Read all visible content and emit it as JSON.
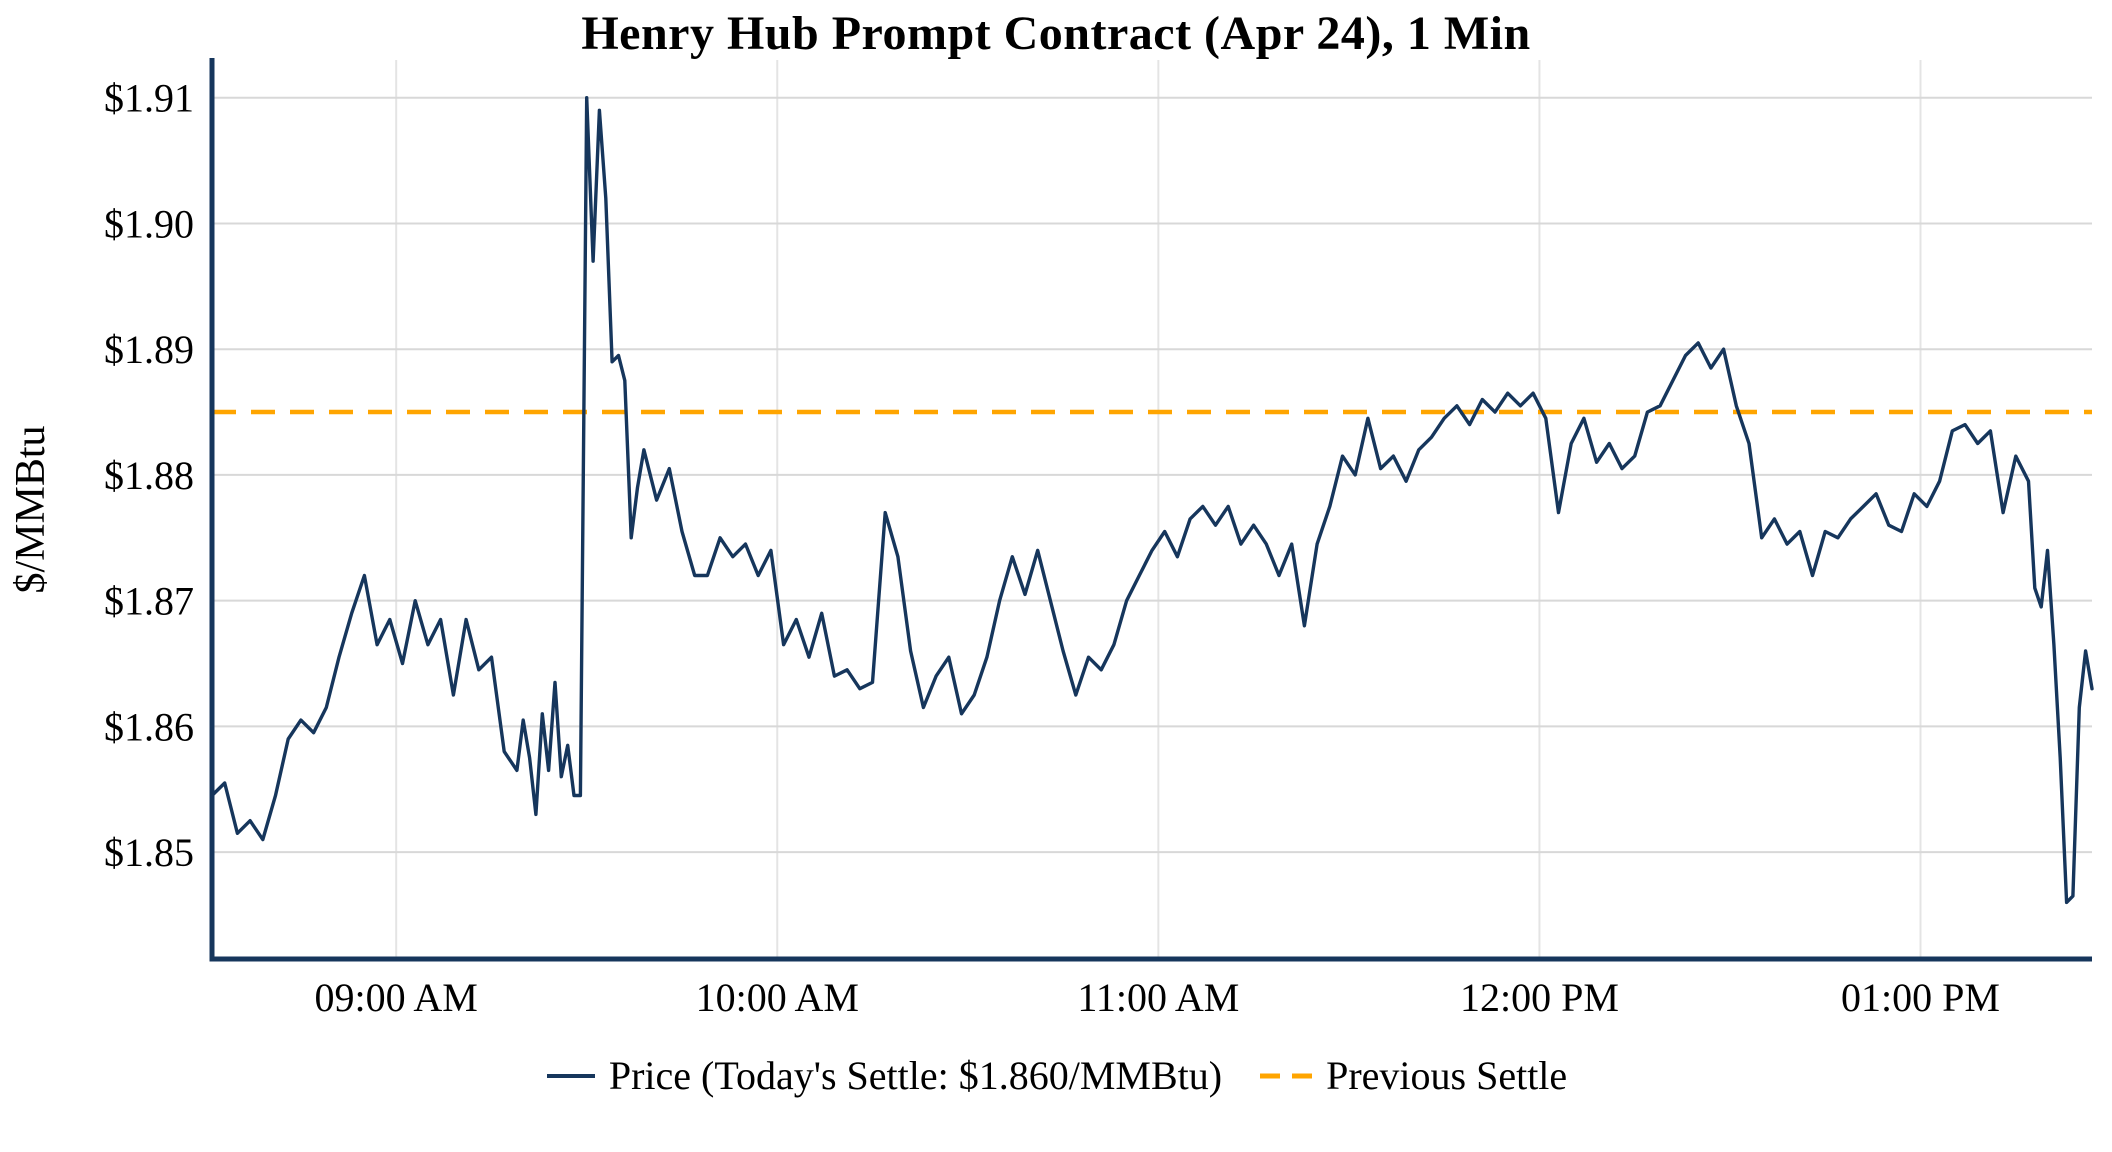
{
  "colors": {
    "price": "#16365c",
    "settle": "#FFA500",
    "axis": "#16365c",
    "grid_h": "#d8d8d8",
    "grid_v": "#e4e4e4",
    "text": "#000000",
    "background": "#ffffff"
  },
  "legend": {
    "price_label": "Price (Today's Settle: $1.860/MMBtu)",
    "settle_label": "Previous Settle"
  },
  "chart_data": {
    "type": "line",
    "title": "Henry Hub Prompt Contract (Apr 24), 1 Min",
    "xlabel": "",
    "ylabel": "$/MMBtu",
    "x_unit": "minutes_since_midnight",
    "xlim": [
      511,
      807
    ],
    "ylim": [
      1.8415,
      1.913
    ],
    "grid": true,
    "legend_position": "bottom",
    "previous_settle": 1.885,
    "todays_settle": 1.86,
    "y_ticks": [
      {
        "v": 1.85,
        "label": "$1.85"
      },
      {
        "v": 1.86,
        "label": "$1.86"
      },
      {
        "v": 1.87,
        "label": "$1.87"
      },
      {
        "v": 1.88,
        "label": "$1.88"
      },
      {
        "v": 1.89,
        "label": "$1.89"
      },
      {
        "v": 1.9,
        "label": "$1.90"
      },
      {
        "v": 1.91,
        "label": "$1.91"
      }
    ],
    "x_ticks": [
      {
        "t": 540,
        "label": "09:00 AM"
      },
      {
        "t": 600,
        "label": "10:00 AM"
      },
      {
        "t": 660,
        "label": "11:00 AM"
      },
      {
        "t": 720,
        "label": "12:00 PM"
      },
      {
        "t": 780,
        "label": "01:00 PM"
      }
    ],
    "series": [
      {
        "name": "Price (Today's Settle: $1.860/MMBtu)",
        "color": "#16365c",
        "style": "solid",
        "points": [
          [
            511,
            1.8545
          ],
          [
            513,
            1.8555
          ],
          [
            515,
            1.8515
          ],
          [
            517,
            1.8525
          ],
          [
            519,
            1.851
          ],
          [
            521,
            1.8545
          ],
          [
            523,
            1.859
          ],
          [
            525,
            1.8605
          ],
          [
            527,
            1.8595
          ],
          [
            529,
            1.8615
          ],
          [
            531,
            1.8655
          ],
          [
            533,
            1.869
          ],
          [
            535,
            1.872
          ],
          [
            537,
            1.8665
          ],
          [
            539,
            1.8685
          ],
          [
            541,
            1.865
          ],
          [
            543,
            1.87
          ],
          [
            545,
            1.8665
          ],
          [
            547,
            1.8685
          ],
          [
            549,
            1.8625
          ],
          [
            551,
            1.8685
          ],
          [
            553,
            1.8645
          ],
          [
            555,
            1.8655
          ],
          [
            557,
            1.858
          ],
          [
            559,
            1.8565
          ],
          [
            560,
            1.8605
          ],
          [
            561,
            1.8575
          ],
          [
            562,
            1.853
          ],
          [
            563,
            1.861
          ],
          [
            564,
            1.8565
          ],
          [
            565,
            1.8635
          ],
          [
            566,
            1.856
          ],
          [
            567,
            1.8585
          ],
          [
            568,
            1.8545
          ],
          [
            569,
            1.8545
          ],
          [
            570,
            1.91
          ],
          [
            571,
            1.897
          ],
          [
            572,
            1.909
          ],
          [
            573,
            1.902
          ],
          [
            574,
            1.889
          ],
          [
            575,
            1.8895
          ],
          [
            576,
            1.8875
          ],
          [
            577,
            1.875
          ],
          [
            578,
            1.879
          ],
          [
            579,
            1.882
          ],
          [
            581,
            1.878
          ],
          [
            583,
            1.8805
          ],
          [
            585,
            1.8755
          ],
          [
            587,
            1.872
          ],
          [
            589,
            1.872
          ],
          [
            591,
            1.875
          ],
          [
            593,
            1.8735
          ],
          [
            595,
            1.8745
          ],
          [
            597,
            1.872
          ],
          [
            599,
            1.874
          ],
          [
            601,
            1.8665
          ],
          [
            603,
            1.8685
          ],
          [
            605,
            1.8655
          ],
          [
            607,
            1.869
          ],
          [
            609,
            1.864
          ],
          [
            611,
            1.8645
          ],
          [
            613,
            1.863
          ],
          [
            615,
            1.8635
          ],
          [
            617,
            1.877
          ],
          [
            619,
            1.8735
          ],
          [
            621,
            1.866
          ],
          [
            623,
            1.8615
          ],
          [
            625,
            1.864
          ],
          [
            627,
            1.8655
          ],
          [
            629,
            1.861
          ],
          [
            631,
            1.8625
          ],
          [
            633,
            1.8655
          ],
          [
            635,
            1.87
          ],
          [
            637,
            1.8735
          ],
          [
            639,
            1.8705
          ],
          [
            641,
            1.874
          ],
          [
            643,
            1.87
          ],
          [
            645,
            1.866
          ],
          [
            647,
            1.8625
          ],
          [
            649,
            1.8655
          ],
          [
            651,
            1.8645
          ],
          [
            653,
            1.8665
          ],
          [
            655,
            1.87
          ],
          [
            657,
            1.872
          ],
          [
            659,
            1.874
          ],
          [
            661,
            1.8755
          ],
          [
            663,
            1.8735
          ],
          [
            665,
            1.8765
          ],
          [
            667,
            1.8775
          ],
          [
            669,
            1.876
          ],
          [
            671,
            1.8775
          ],
          [
            673,
            1.8745
          ],
          [
            675,
            1.876
          ],
          [
            677,
            1.8745
          ],
          [
            679,
            1.872
          ],
          [
            681,
            1.8745
          ],
          [
            683,
            1.868
          ],
          [
            685,
            1.8745
          ],
          [
            687,
            1.8775
          ],
          [
            689,
            1.8815
          ],
          [
            691,
            1.88
          ],
          [
            693,
            1.8845
          ],
          [
            695,
            1.8805
          ],
          [
            697,
            1.8815
          ],
          [
            699,
            1.8795
          ],
          [
            701,
            1.882
          ],
          [
            703,
            1.883
          ],
          [
            705,
            1.8845
          ],
          [
            707,
            1.8855
          ],
          [
            709,
            1.884
          ],
          [
            711,
            1.886
          ],
          [
            713,
            1.885
          ],
          [
            715,
            1.8865
          ],
          [
            717,
            1.8855
          ],
          [
            719,
            1.8865
          ],
          [
            721,
            1.8845
          ],
          [
            723,
            1.877
          ],
          [
            725,
            1.8825
          ],
          [
            727,
            1.8845
          ],
          [
            729,
            1.881
          ],
          [
            731,
            1.8825
          ],
          [
            733,
            1.8805
          ],
          [
            735,
            1.8815
          ],
          [
            737,
            1.885
          ],
          [
            739,
            1.8855
          ],
          [
            741,
            1.8875
          ],
          [
            743,
            1.8895
          ],
          [
            745,
            1.8905
          ],
          [
            747,
            1.8885
          ],
          [
            749,
            1.89
          ],
          [
            751,
            1.8855
          ],
          [
            753,
            1.8825
          ],
          [
            755,
            1.875
          ],
          [
            757,
            1.8765
          ],
          [
            759,
            1.8745
          ],
          [
            761,
            1.8755
          ],
          [
            763,
            1.872
          ],
          [
            765,
            1.8755
          ],
          [
            767,
            1.875
          ],
          [
            769,
            1.8765
          ],
          [
            771,
            1.8775
          ],
          [
            773,
            1.8785
          ],
          [
            775,
            1.876
          ],
          [
            777,
            1.8755
          ],
          [
            779,
            1.8785
          ],
          [
            781,
            1.8775
          ],
          [
            783,
            1.8795
          ],
          [
            785,
            1.8835
          ],
          [
            787,
            1.884
          ],
          [
            789,
            1.8825
          ],
          [
            791,
            1.8835
          ],
          [
            793,
            1.877
          ],
          [
            795,
            1.8815
          ],
          [
            797,
            1.8795
          ],
          [
            798,
            1.871
          ],
          [
            799,
            1.8695
          ],
          [
            800,
            1.874
          ],
          [
            801,
            1.8665
          ],
          [
            802,
            1.8575
          ],
          [
            803,
            1.846
          ],
          [
            804,
            1.8465
          ],
          [
            805,
            1.8615
          ],
          [
            806,
            1.866
          ],
          [
            807,
            1.863
          ]
        ]
      },
      {
        "name": "Previous Settle",
        "color": "#FFA500",
        "style": "dashed",
        "type": "hline",
        "value": 1.885
      }
    ]
  }
}
